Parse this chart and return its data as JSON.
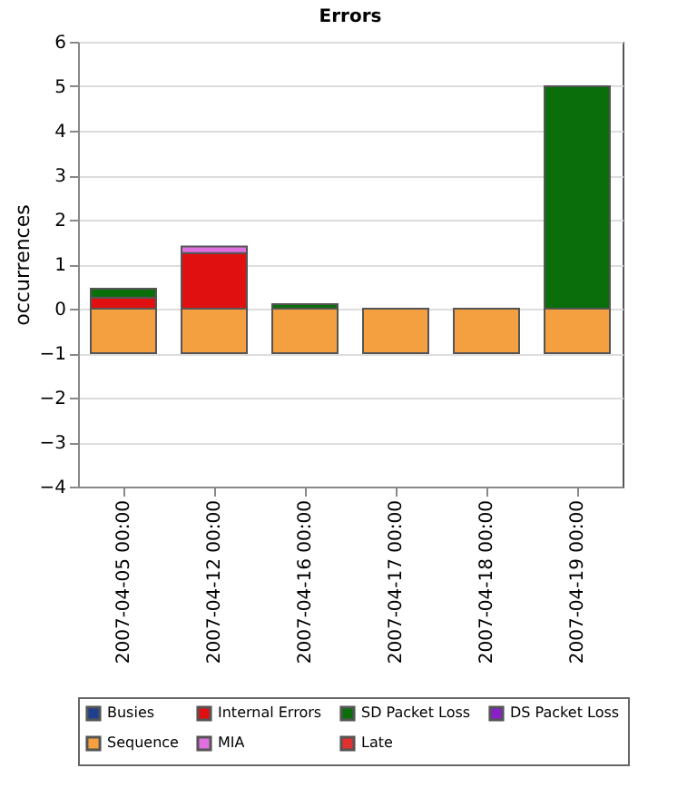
{
  "chart_data": {
    "type": "bar",
    "title": "Errors",
    "ylabel": "occurrences",
    "stacked": true,
    "categories": [
      "2007-04-05 00:00",
      "2007-04-12 00:00",
      "2007-04-16 00:00",
      "2007-04-17 00:00",
      "2007-04-18 00:00",
      "2007-04-19 00:00"
    ],
    "series": [
      {
        "name": "Busies",
        "color": "#1f3f8f",
        "values": [
          null,
          null,
          null,
          null,
          null,
          null
        ]
      },
      {
        "name": "Internal Errors",
        "color": "#e01010",
        "values": [
          0.25,
          1.25,
          null,
          null,
          null,
          null
        ]
      },
      {
        "name": "SD Packet Loss",
        "color": "#0a6e0a",
        "values": [
          0.2,
          null,
          0.1,
          null,
          null,
          5
        ]
      },
      {
        "name": "DS Packet Loss",
        "color": "#8a1fc8",
        "values": [
          null,
          null,
          null,
          null,
          null,
          null
        ]
      },
      {
        "name": "Sequence",
        "color": "#f5a040",
        "values": [
          -1,
          -1,
          -1,
          -1,
          -1,
          -1
        ]
      },
      {
        "name": "MIA",
        "color": "#e070e0",
        "values": [
          null,
          0.15,
          null,
          null,
          null,
          null
        ]
      },
      {
        "name": "Late",
        "color": "#e03030",
        "values": [
          null,
          null,
          null,
          null,
          null,
          null
        ]
      }
    ],
    "ylim": [
      -4,
      6
    ],
    "yticks": [
      -4,
      -3,
      -2,
      -1,
      0,
      1,
      2,
      3,
      4,
      5,
      6
    ],
    "grid": "y",
    "legend": "bottom"
  }
}
